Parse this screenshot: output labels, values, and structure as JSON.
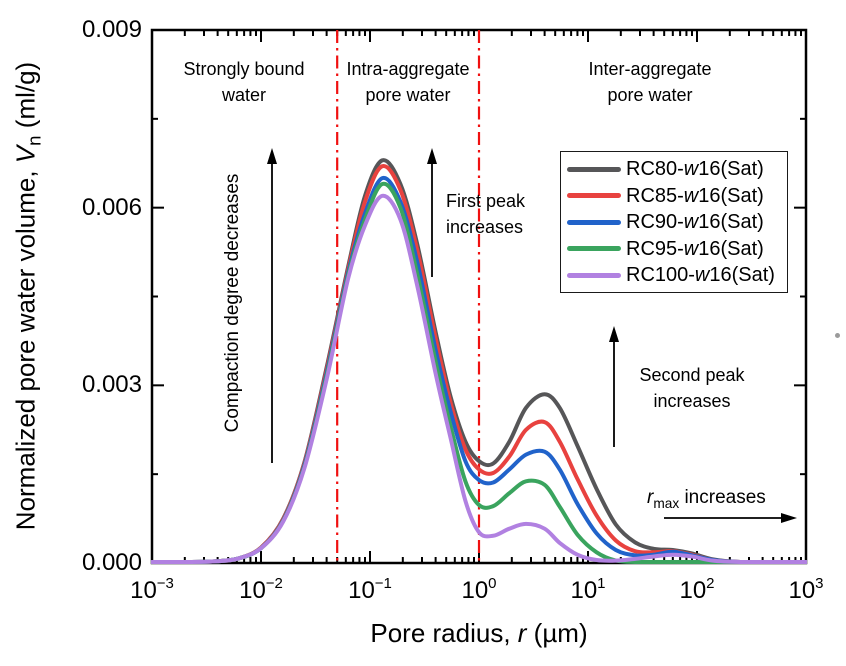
{
  "chart": {
    "type": "line",
    "x_axis": {
      "title": {
        "prefix": "Pore radius, ",
        "variable": "r",
        "suffix": " (µm)"
      },
      "scale": "log",
      "tick_base": "10",
      "tick_exponents": [
        -3,
        -2,
        -1,
        0,
        1,
        2,
        3
      ],
      "range_um": [
        0.001,
        1000
      ]
    },
    "y_axis": {
      "title": {
        "prefix": "Normalized pore water volume, ",
        "variable": "V",
        "subscript": "n",
        "suffix": " (ml/g)"
      },
      "tick_labels": [
        "0.000",
        "0.003",
        "0.006",
        "0.009"
      ],
      "tick_values": [
        0,
        0.003,
        0.006,
        0.009
      ],
      "minor_tick_values": [
        0.0015,
        0.0045,
        0.0075
      ],
      "range": [
        0,
        0.009
      ]
    },
    "boundary_lines": {
      "x_values_um": [
        0.05,
        1.0
      ],
      "color": "#f01010",
      "style": "dash-dot"
    },
    "series": [
      {
        "name": "RC80-w16(Sat)",
        "color": "#565658",
        "points": [
          [
            0.001,
            0
          ],
          [
            0.002,
            1e-05
          ],
          [
            0.004,
            3e-05
          ],
          [
            0.0063,
            8e-05
          ],
          [
            0.01,
            0.00026
          ],
          [
            0.016,
            0.00075
          ],
          [
            0.025,
            0.0017
          ],
          [
            0.04,
            0.0033
          ],
          [
            0.063,
            0.005
          ],
          [
            0.09,
            0.0062
          ],
          [
            0.13,
            0.0068
          ],
          [
            0.19,
            0.0064
          ],
          [
            0.27,
            0.0054
          ],
          [
            0.4,
            0.0039
          ],
          [
            0.55,
            0.0028
          ],
          [
            0.75,
            0.00205
          ],
          [
            1.0,
            0.00172
          ],
          [
            1.35,
            0.00168
          ],
          [
            1.9,
            0.00205
          ],
          [
            2.7,
            0.00262
          ],
          [
            4.0,
            0.00285
          ],
          [
            5.5,
            0.00262
          ],
          [
            8.0,
            0.00198
          ],
          [
            12,
            0.00125
          ],
          [
            18,
            0.00065
          ],
          [
            27,
            0.00035
          ],
          [
            40,
            0.00024
          ],
          [
            60,
            0.00022
          ],
          [
            90,
            0.00016
          ],
          [
            140,
            6e-05
          ],
          [
            250,
            1e-05
          ],
          [
            500,
            0
          ],
          [
            1000,
            0
          ]
        ]
      },
      {
        "name": "RC85-w16(Sat)",
        "color": "#e8423f",
        "points": [
          [
            0.001,
            0
          ],
          [
            0.002,
            1e-05
          ],
          [
            0.004,
            3e-05
          ],
          [
            0.0063,
            8e-05
          ],
          [
            0.01,
            0.00026
          ],
          [
            0.016,
            0.00074
          ],
          [
            0.025,
            0.00168
          ],
          [
            0.04,
            0.00325
          ],
          [
            0.063,
            0.00495
          ],
          [
            0.09,
            0.0061
          ],
          [
            0.13,
            0.0067
          ],
          [
            0.19,
            0.0063
          ],
          [
            0.27,
            0.0053
          ],
          [
            0.4,
            0.0038
          ],
          [
            0.55,
            0.0027
          ],
          [
            0.75,
            0.00192
          ],
          [
            1.0,
            0.00158
          ],
          [
            1.35,
            0.00152
          ],
          [
            1.9,
            0.0018
          ],
          [
            2.7,
            0.00225
          ],
          [
            4.0,
            0.00238
          ],
          [
            5.5,
            0.00205
          ],
          [
            8.0,
            0.00142
          ],
          [
            12,
            0.0008
          ],
          [
            18,
            0.00038
          ],
          [
            27,
            0.0002
          ],
          [
            40,
            0.00018
          ],
          [
            60,
            0.0002
          ],
          [
            90,
            0.00014
          ],
          [
            140,
            5e-05
          ],
          [
            250,
            1e-05
          ],
          [
            500,
            0
          ],
          [
            1000,
            0
          ]
        ]
      },
      {
        "name": "RC90-w16(Sat)",
        "color": "#2163ca",
        "points": [
          [
            0.001,
            0
          ],
          [
            0.002,
            1e-05
          ],
          [
            0.004,
            3e-05
          ],
          [
            0.0063,
            8e-05
          ],
          [
            0.01,
            0.00025
          ],
          [
            0.016,
            0.00072
          ],
          [
            0.025,
            0.00165
          ],
          [
            0.04,
            0.0032
          ],
          [
            0.063,
            0.0049
          ],
          [
            0.09,
            0.0059
          ],
          [
            0.13,
            0.0065
          ],
          [
            0.19,
            0.0061
          ],
          [
            0.27,
            0.0051
          ],
          [
            0.4,
            0.0036
          ],
          [
            0.55,
            0.00255
          ],
          [
            0.75,
            0.00172
          ],
          [
            1.0,
            0.0014
          ],
          [
            1.35,
            0.00136
          ],
          [
            1.9,
            0.00158
          ],
          [
            2.7,
            0.00183
          ],
          [
            4.0,
            0.00188
          ],
          [
            5.5,
            0.00158
          ],
          [
            8.0,
            0.001
          ],
          [
            12,
            0.0005
          ],
          [
            18,
            0.00022
          ],
          [
            27,
            0.00013
          ],
          [
            40,
            0.00014
          ],
          [
            60,
            0.00019
          ],
          [
            90,
            0.00013
          ],
          [
            140,
            5e-05
          ],
          [
            250,
            1e-05
          ],
          [
            500,
            0
          ],
          [
            1000,
            0
          ]
        ]
      },
      {
        "name": "RC95-w16(Sat)",
        "color": "#3aa45e",
        "points": [
          [
            0.001,
            0
          ],
          [
            0.002,
            1e-05
          ],
          [
            0.004,
            3e-05
          ],
          [
            0.0063,
            8e-05
          ],
          [
            0.01,
            0.00025
          ],
          [
            0.016,
            0.00071
          ],
          [
            0.025,
            0.00162
          ],
          [
            0.04,
            0.00315
          ],
          [
            0.063,
            0.00485
          ],
          [
            0.09,
            0.0058
          ],
          [
            0.13,
            0.0064
          ],
          [
            0.19,
            0.006
          ],
          [
            0.27,
            0.0049
          ],
          [
            0.4,
            0.0034
          ],
          [
            0.55,
            0.0023
          ],
          [
            0.75,
            0.00138
          ],
          [
            1.0,
            0.00098
          ],
          [
            1.35,
            0.00096
          ],
          [
            1.9,
            0.00118
          ],
          [
            2.7,
            0.00138
          ],
          [
            4.0,
            0.00132
          ],
          [
            5.5,
            0.00095
          ],
          [
            8.0,
            0.00048
          ],
          [
            12,
            0.00018
          ],
          [
            18,
            4e-05
          ],
          [
            27,
            0
          ],
          [
            40,
            0
          ],
          [
            60,
            0
          ],
          [
            90,
            0
          ],
          [
            140,
            0
          ],
          [
            250,
            0
          ],
          [
            500,
            0
          ],
          [
            1000,
            0
          ]
        ]
      },
      {
        "name": "RC100-w16(Sat)",
        "color": "#b181e1",
        "points": [
          [
            0.001,
            0
          ],
          [
            0.002,
            1e-05
          ],
          [
            0.004,
            3e-05
          ],
          [
            0.0063,
            8e-05
          ],
          [
            0.01,
            0.00025
          ],
          [
            0.016,
            0.0007
          ],
          [
            0.025,
            0.0016
          ],
          [
            0.04,
            0.0031
          ],
          [
            0.063,
            0.0048
          ],
          [
            0.09,
            0.0057
          ],
          [
            0.13,
            0.0062
          ],
          [
            0.19,
            0.0058
          ],
          [
            0.27,
            0.0047
          ],
          [
            0.4,
            0.0032
          ],
          [
            0.55,
            0.0021
          ],
          [
            0.75,
            0.00105
          ],
          [
            1.0,
            0.00052
          ],
          [
            1.35,
            0.00046
          ],
          [
            1.9,
            0.00058
          ],
          [
            2.7,
            0.00066
          ],
          [
            4.0,
            0.00058
          ],
          [
            5.5,
            0.00034
          ],
          [
            8.0,
            0.00014
          ],
          [
            12,
            5e-05
          ],
          [
            18,
            4e-05
          ],
          [
            27,
            7e-05
          ],
          [
            40,
            0.00011
          ],
          [
            60,
            0.00014
          ],
          [
            90,
            0.00011
          ],
          [
            140,
            4e-05
          ],
          [
            250,
            1e-05
          ],
          [
            500,
            0
          ],
          [
            1000,
            0
          ]
        ]
      }
    ]
  },
  "annotations": {
    "regions": [
      {
        "line1": "Strongly bound",
        "line2": "water"
      },
      {
        "line1": "Intra-aggregate",
        "line2": "pore water"
      },
      {
        "line1": "Inter-aggregate",
        "line2": "pore water"
      }
    ],
    "compaction": "Compaction degree decreases",
    "first_peak": {
      "line1": "First peak",
      "line2": "increases"
    },
    "second_peak": {
      "line1": "Second peak",
      "line2": "increases"
    },
    "rmax": {
      "variable": "r",
      "subscript": "max",
      "suffix": " increases"
    }
  }
}
